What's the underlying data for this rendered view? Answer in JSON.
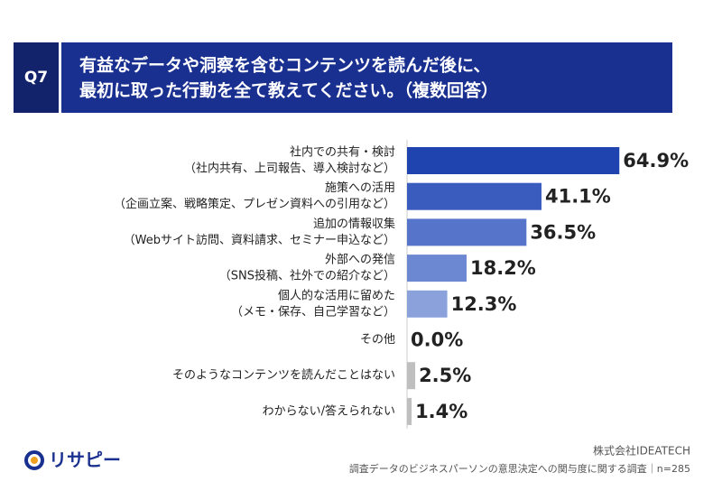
{
  "header": {
    "question": "Q7",
    "title": [
      "有益なデータや洞察を含むコンテンツを読んだ後に、",
      "最初に取った行動を全て教えてください。（複数回答）"
    ]
  },
  "chart_data": {
    "type": "bar",
    "orientation": "horizontal",
    "categories": [
      [
        "社内での共有・検討",
        "（社内共有、上司報告、導入検討など）"
      ],
      [
        "施策への活用",
        "（企画立案、戦略策定、プレゼン資料への引用など）"
      ],
      [
        "追加の情報収集",
        "（Webサイト訪問、資料請求、セミナー申込など）"
      ],
      [
        "外部への発信",
        "（SNS投稿、社外での紹介など）"
      ],
      [
        "個人的な活用に留めた",
        "（メモ・保存、自己学習など）"
      ],
      [
        "その他"
      ],
      [
        "そのようなコンテンツを読んだことはない"
      ],
      [
        "わからない/答えられない"
      ]
    ],
    "values": [
      64.9,
      41.1,
      36.5,
      18.2,
      12.3,
      0.0,
      2.5,
      1.4
    ],
    "value_labels": [
      "64.9%",
      "41.1%",
      "36.5%",
      "18.2%",
      "12.3%",
      "0.0%",
      "2.5%",
      "1.4%"
    ],
    "colors": [
      "#1f44b0",
      "#3b5cbf",
      "#5674c9",
      "#6d88d2",
      "#8aa1dc",
      "#bfbfbf",
      "#bfbfbf",
      "#bfbfbf"
    ],
    "xlim": [
      0,
      80
    ]
  },
  "footer": {
    "logo": "リサピー",
    "company": "株式会社IDEATECH",
    "source": "調査データのビジネスパーソンの意思決定への関与度に関する調査｜n=285"
  }
}
